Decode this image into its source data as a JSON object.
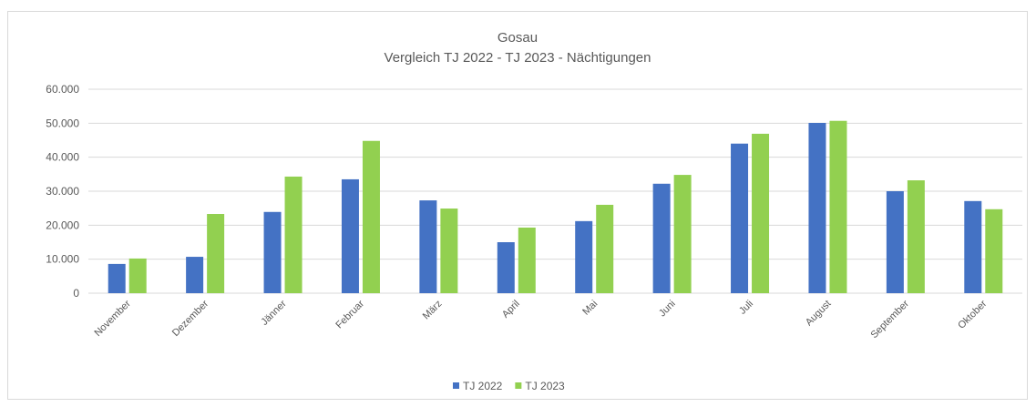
{
  "chart_data": {
    "type": "bar",
    "title": "Gosau",
    "subtitle": "Vergleich TJ 2022 - TJ 2023 - Nächtigungen",
    "categories": [
      "November",
      "Dezember",
      "Jänner",
      "Februar",
      "März",
      "April",
      "Mai",
      "Juni",
      "Juli",
      "August",
      "September",
      "Oktober"
    ],
    "series": [
      {
        "name": "TJ 2022",
        "color": "#4472c4",
        "values": [
          8600,
          10700,
          23900,
          33500,
          27300,
          15000,
          21200,
          32200,
          44000,
          50100,
          30000,
          27100
        ]
      },
      {
        "name": "TJ 2023",
        "color": "#92d050",
        "values": [
          10200,
          23300,
          34300,
          44800,
          24900,
          19300,
          26000,
          34800,
          46900,
          50700,
          33200,
          24700
        ]
      }
    ],
    "ylim": [
      0,
      60000
    ],
    "yticks": [
      0,
      {
        "value": 10000,
        "label": "10.000"
      },
      {
        "value": 20000,
        "label": "20.000"
      },
      {
        "value": 30000,
        "label": "30.000"
      },
      {
        "value": 40000,
        "label": "40.000"
      },
      {
        "value": 50000,
        "label": "50.000"
      },
      {
        "value": 60000,
        "label": "60.000"
      }
    ],
    "grid": true,
    "legend": "bottom"
  }
}
